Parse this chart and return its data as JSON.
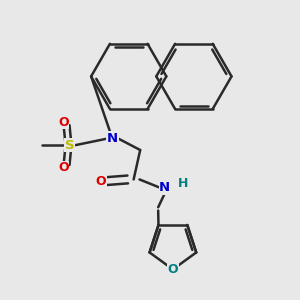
{
  "background_color": "#e8e8e8",
  "bond_color": "#2a2a2a",
  "bond_width": 1.8,
  "atom_colors": {
    "N": "#0000cc",
    "O": "#dd0000",
    "S": "#bbbb00",
    "O_furan": "#008080",
    "H": "#008080",
    "C": "#2a2a2a"
  },
  "figsize": [
    3.0,
    3.0
  ],
  "dpi": 100
}
